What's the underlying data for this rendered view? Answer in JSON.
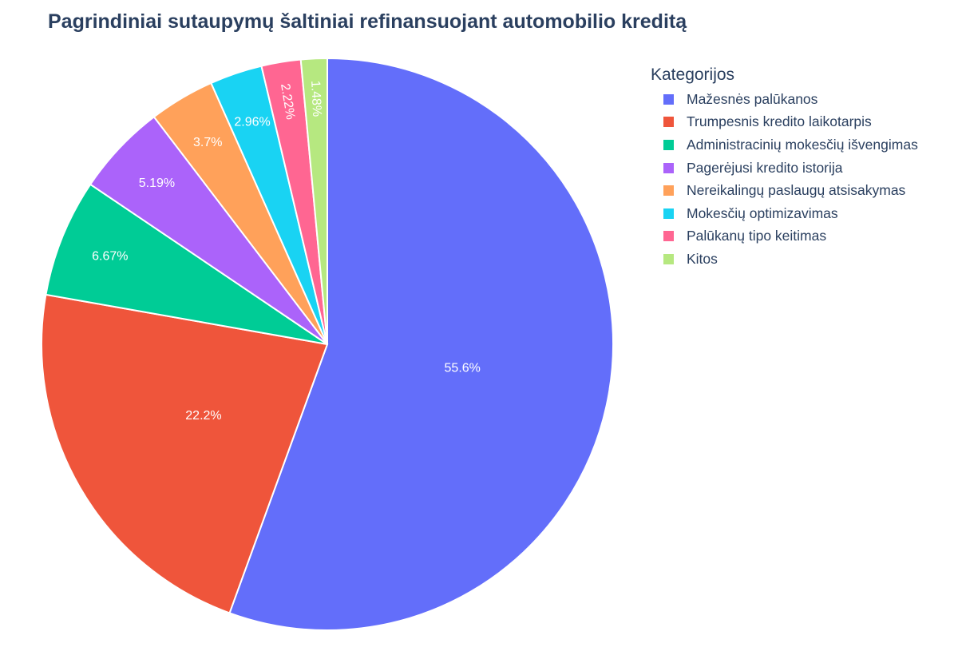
{
  "title": "Pagrindiniai sutaupymų šaltiniai refinansuojant automobilio kreditą",
  "legend": {
    "title": "Kategorijos",
    "items": [
      {
        "label": "Mažesnės palūkanos",
        "color": "#636efa"
      },
      {
        "label": "Trumpesnis kredito laikotarpis",
        "color": "#ef553b"
      },
      {
        "label": "Administracinių mokesčių išvengimas",
        "color": "#00cc96"
      },
      {
        "label": "Pagerėjusi kredito istorija",
        "color": "#ab63fa"
      },
      {
        "label": "Nereikalingų paslaugų atsisakymas",
        "color": "#ffa15a"
      },
      {
        "label": "Mokesčių optimizavimas",
        "color": "#19d3f3"
      },
      {
        "label": "Palūkanų tipo keitimas",
        "color": "#ff6692"
      },
      {
        "label": "Kitos",
        "color": "#b6e880"
      }
    ]
  },
  "chart_data": {
    "type": "pie",
    "title": "Pagrindiniai sutaupymų šaltiniai refinansuojant automobilio kreditą",
    "legend_title": "Kategorijos",
    "legend_position": "right",
    "categories": [
      "Mažesnės palūkanos",
      "Trumpesnis kredito laikotarpis",
      "Administracinių mokesčių išvengimas",
      "Pagerėjusi kredito istorija",
      "Nereikalingų paslaugų atsisakymas",
      "Mokesčių optimizavimas",
      "Palūkanų tipo keitimas",
      "Kitos"
    ],
    "values": [
      75,
      30,
      9,
      7,
      5,
      4,
      3,
      2
    ],
    "percent_labels": [
      "55.6%",
      "22.2%",
      "6.67%",
      "5.19%",
      "3.7%",
      "2.96%",
      "2.22%",
      "1.48%"
    ],
    "colors": [
      "#636efa",
      "#ef553b",
      "#00cc96",
      "#ab63fa",
      "#ffa15a",
      "#19d3f3",
      "#ff6692",
      "#b6e880"
    ],
    "direction": "clockwise",
    "start_angle_deg": 90,
    "textinfo": "percent"
  }
}
